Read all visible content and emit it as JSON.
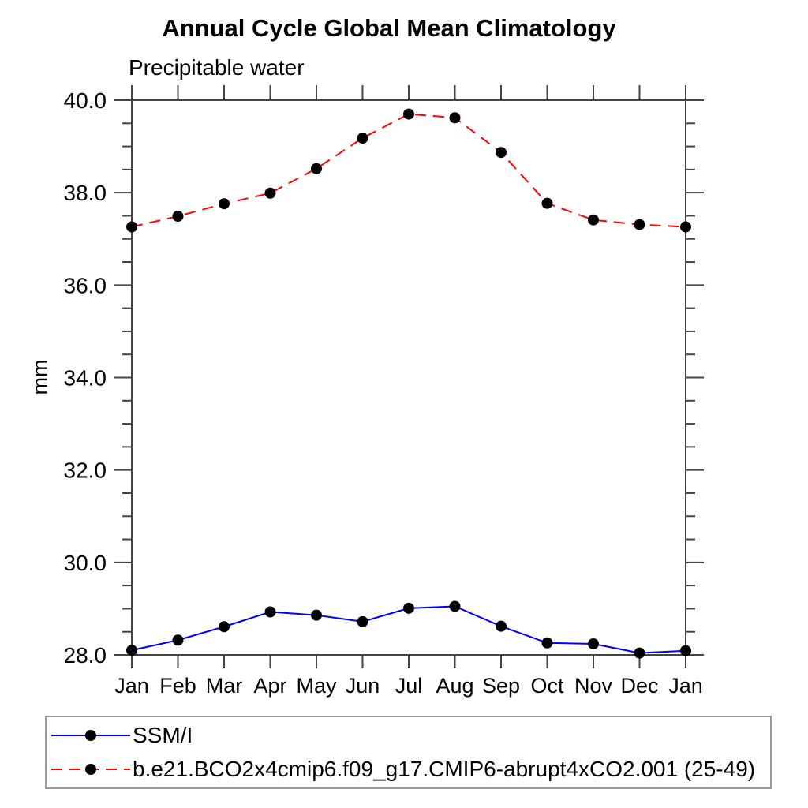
{
  "chart_data": {
    "type": "line",
    "title": "Annual Cycle Global Mean Climatology",
    "subtitle": "Precipitable water",
    "ylabel": "mm",
    "xlabel": "",
    "categories": [
      "Jan",
      "Feb",
      "Mar",
      "Apr",
      "May",
      "Jun",
      "Jul",
      "Aug",
      "Sep",
      "Oct",
      "Nov",
      "Dec",
      "Jan"
    ],
    "ylim": [
      28.0,
      40.0
    ],
    "y_major_step": 2.0,
    "y_minor_step": 0.5,
    "y_tick_labels": [
      "28.0",
      "30.0",
      "32.0",
      "34.0",
      "36.0",
      "38.0",
      "40.0"
    ],
    "grid": false,
    "legend_position": "bottom-box",
    "marker": "filled-circle",
    "marker_color": "#000000",
    "axis_color": "#444444",
    "series": [
      {
        "name": "SSM/I",
        "color": "#0000ff",
        "dash": "none",
        "values": [
          28.1,
          28.32,
          28.61,
          28.93,
          28.86,
          28.72,
          29.01,
          29.05,
          28.62,
          28.26,
          28.24,
          28.04,
          28.09
        ]
      },
      {
        "name": "b.e21.BCO2x4cmip6.f09_g17.CMIP6-abrupt4xCO2.001 (25-49)",
        "color": "#ff0000",
        "dash": "14 9",
        "values": [
          37.26,
          37.49,
          37.76,
          37.99,
          38.52,
          39.18,
          39.7,
          39.62,
          38.87,
          37.77,
          37.41,
          37.31,
          37.26
        ]
      }
    ]
  }
}
